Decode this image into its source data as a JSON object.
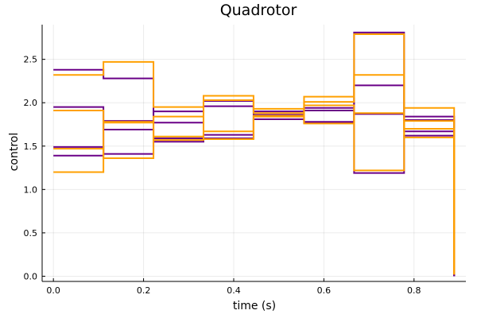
{
  "chart_data": {
    "type": "line",
    "step": "post",
    "title": "Quadrotor",
    "xlabel": "time (s)",
    "ylabel": "control",
    "xlim": [
      -0.025,
      0.915
    ],
    "ylim": [
      -0.06,
      2.9
    ],
    "xticks": [
      0.0,
      0.2,
      0.4,
      0.6,
      0.8
    ],
    "xtick_labels": [
      "0.0",
      "0.2",
      "0.4",
      "0.6",
      "0.8"
    ],
    "yticks": [
      0.0,
      0.5,
      1.0,
      1.5,
      2.0,
      2.5
    ],
    "ytick_labels": [
      "0.0",
      "0.5",
      "1.0",
      "1.5",
      "2.0",
      "2.5"
    ],
    "grid": true,
    "legend": "none",
    "x": [
      0.0,
      0.111,
      0.222,
      0.333,
      0.444,
      0.556,
      0.667,
      0.778,
      0.889
    ],
    "series": [
      {
        "color": "#6a0087",
        "values": [
          2.38,
          2.28,
          1.77,
          2.02,
          1.9,
          1.94,
          2.81,
          1.67,
          0.0
        ]
      },
      {
        "color": "#6a0087",
        "values": [
          1.95,
          1.69,
          1.59,
          1.63,
          1.84,
          1.78,
          2.2,
          1.84,
          0.0
        ]
      },
      {
        "color": "#6a0087",
        "values": [
          1.49,
          1.41,
          1.55,
          1.59,
          1.81,
          1.77,
          1.87,
          1.8,
          0.0
        ]
      },
      {
        "color": "#6a0087",
        "values": [
          1.39,
          1.79,
          1.9,
          1.96,
          1.86,
          1.91,
          1.19,
          1.62,
          0.0
        ]
      },
      {
        "color": "#ffa000",
        "values": [
          2.32,
          2.47,
          1.95,
          2.08,
          1.93,
          2.07,
          2.79,
          1.94,
          0.02
        ]
      },
      {
        "color": "#ffa000",
        "values": [
          1.91,
          1.77,
          1.61,
          1.67,
          1.85,
          2.01,
          2.32,
          1.7,
          0.02
        ]
      },
      {
        "color": "#ffa000",
        "values": [
          1.47,
          1.36,
          1.84,
          1.58,
          1.84,
          1.97,
          1.22,
          1.79,
          0.02
        ]
      },
      {
        "color": "#ffa000",
        "values": [
          1.2,
          1.78,
          1.57,
          2.03,
          1.88,
          1.76,
          1.88,
          1.6,
          0.02
        ]
      }
    ]
  }
}
